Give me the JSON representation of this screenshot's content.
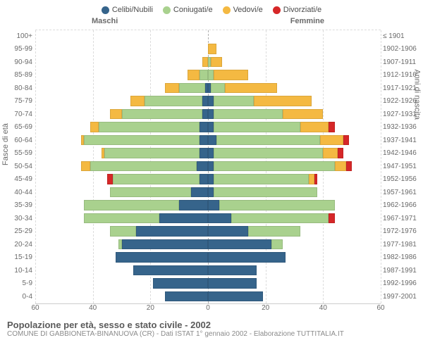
{
  "legend": [
    {
      "label": "Celibi/Nubili",
      "color": "#36648b"
    },
    {
      "label": "Coniugati/e",
      "color": "#a9d18e"
    },
    {
      "label": "Vedovi/e",
      "color": "#f4b942"
    },
    {
      "label": "Divorziati/e",
      "color": "#d62728"
    }
  ],
  "gender_left": "Maschi",
  "gender_right": "Femmine",
  "y_title_left": "Fasce di età",
  "y_title_right": "Anni di nascita",
  "x_max": 60,
  "x_ticks": [
    60,
    40,
    20,
    0,
    20,
    40,
    60
  ],
  "colors": {
    "celibi": "#36648b",
    "coniugati": "#a9d18e",
    "vedovi": "#f4b942",
    "divorziati": "#d62728"
  },
  "rows": [
    {
      "age": "100+",
      "birth": "≤ 1901",
      "m": {
        "c": 0,
        "g": 0,
        "v": 0,
        "d": 0
      },
      "f": {
        "c": 0,
        "g": 0,
        "v": 0,
        "d": 0
      }
    },
    {
      "age": "95-99",
      "birth": "1902-1906",
      "m": {
        "c": 0,
        "g": 0,
        "v": 0,
        "d": 0
      },
      "f": {
        "c": 0,
        "g": 0,
        "v": 3,
        "d": 0
      }
    },
    {
      "age": "90-94",
      "birth": "1907-1911",
      "m": {
        "c": 0,
        "g": 0,
        "v": 2,
        "d": 0
      },
      "f": {
        "c": 0,
        "g": 1,
        "v": 4,
        "d": 0
      }
    },
    {
      "age": "85-89",
      "birth": "1912-1916",
      "m": {
        "c": 0,
        "g": 3,
        "v": 4,
        "d": 0
      },
      "f": {
        "c": 0,
        "g": 2,
        "v": 12,
        "d": 0
      }
    },
    {
      "age": "80-84",
      "birth": "1917-1921",
      "m": {
        "c": 1,
        "g": 9,
        "v": 5,
        "d": 0
      },
      "f": {
        "c": 1,
        "g": 5,
        "v": 18,
        "d": 0
      }
    },
    {
      "age": "75-79",
      "birth": "1922-1926",
      "m": {
        "c": 2,
        "g": 20,
        "v": 5,
        "d": 0
      },
      "f": {
        "c": 2,
        "g": 14,
        "v": 20,
        "d": 0
      }
    },
    {
      "age": "70-74",
      "birth": "1927-1931",
      "m": {
        "c": 2,
        "g": 28,
        "v": 4,
        "d": 0
      },
      "f": {
        "c": 2,
        "g": 24,
        "v": 14,
        "d": 0
      }
    },
    {
      "age": "65-69",
      "birth": "1932-1936",
      "m": {
        "c": 3,
        "g": 35,
        "v": 3,
        "d": 0
      },
      "f": {
        "c": 2,
        "g": 30,
        "v": 10,
        "d": 2
      }
    },
    {
      "age": "60-64",
      "birth": "1937-1941",
      "m": {
        "c": 3,
        "g": 40,
        "v": 1,
        "d": 0
      },
      "f": {
        "c": 3,
        "g": 36,
        "v": 8,
        "d": 2
      }
    },
    {
      "age": "55-59",
      "birth": "1942-1946",
      "m": {
        "c": 3,
        "g": 33,
        "v": 1,
        "d": 0
      },
      "f": {
        "c": 2,
        "g": 38,
        "v": 5,
        "d": 2
      }
    },
    {
      "age": "50-54",
      "birth": "1947-1951",
      "m": {
        "c": 4,
        "g": 37,
        "v": 3,
        "d": 0
      },
      "f": {
        "c": 2,
        "g": 42,
        "v": 4,
        "d": 2
      }
    },
    {
      "age": "45-49",
      "birth": "1952-1956",
      "m": {
        "c": 3,
        "g": 30,
        "v": 0,
        "d": 2
      },
      "f": {
        "c": 2,
        "g": 33,
        "v": 2,
        "d": 1
      }
    },
    {
      "age": "40-44",
      "birth": "1957-1961",
      "m": {
        "c": 6,
        "g": 28,
        "v": 0,
        "d": 0
      },
      "f": {
        "c": 2,
        "g": 36,
        "v": 0,
        "d": 0
      }
    },
    {
      "age": "35-39",
      "birth": "1962-1966",
      "m": {
        "c": 10,
        "g": 33,
        "v": 0,
        "d": 0
      },
      "f": {
        "c": 4,
        "g": 40,
        "v": 0,
        "d": 0
      }
    },
    {
      "age": "30-34",
      "birth": "1967-1971",
      "m": {
        "c": 17,
        "g": 26,
        "v": 0,
        "d": 0
      },
      "f": {
        "c": 8,
        "g": 34,
        "v": 0,
        "d": 2
      }
    },
    {
      "age": "25-29",
      "birth": "1972-1976",
      "m": {
        "c": 25,
        "g": 9,
        "v": 0,
        "d": 0
      },
      "f": {
        "c": 14,
        "g": 18,
        "v": 0,
        "d": 0
      }
    },
    {
      "age": "20-24",
      "birth": "1977-1981",
      "m": {
        "c": 30,
        "g": 1,
        "v": 0,
        "d": 0
      },
      "f": {
        "c": 22,
        "g": 4,
        "v": 0,
        "d": 0
      }
    },
    {
      "age": "15-19",
      "birth": "1982-1986",
      "m": {
        "c": 32,
        "g": 0,
        "v": 0,
        "d": 0
      },
      "f": {
        "c": 27,
        "g": 0,
        "v": 0,
        "d": 0
      }
    },
    {
      "age": "10-14",
      "birth": "1987-1991",
      "m": {
        "c": 26,
        "g": 0,
        "v": 0,
        "d": 0
      },
      "f": {
        "c": 17,
        "g": 0,
        "v": 0,
        "d": 0
      }
    },
    {
      "age": "5-9",
      "birth": "1992-1996",
      "m": {
        "c": 19,
        "g": 0,
        "v": 0,
        "d": 0
      },
      "f": {
        "c": 17,
        "g": 0,
        "v": 0,
        "d": 0
      }
    },
    {
      "age": "0-4",
      "birth": "1997-2001",
      "m": {
        "c": 15,
        "g": 0,
        "v": 0,
        "d": 0
      },
      "f": {
        "c": 19,
        "g": 0,
        "v": 0,
        "d": 0
      }
    }
  ],
  "footer_title": "Popolazione per età, sesso e stato civile - 2002",
  "footer_sub": "COMUNE DI GABBIONETA-BINANUOVA (CR) - Dati ISTAT 1° gennaio 2002 - Elaborazione TUTTITALIA.IT"
}
